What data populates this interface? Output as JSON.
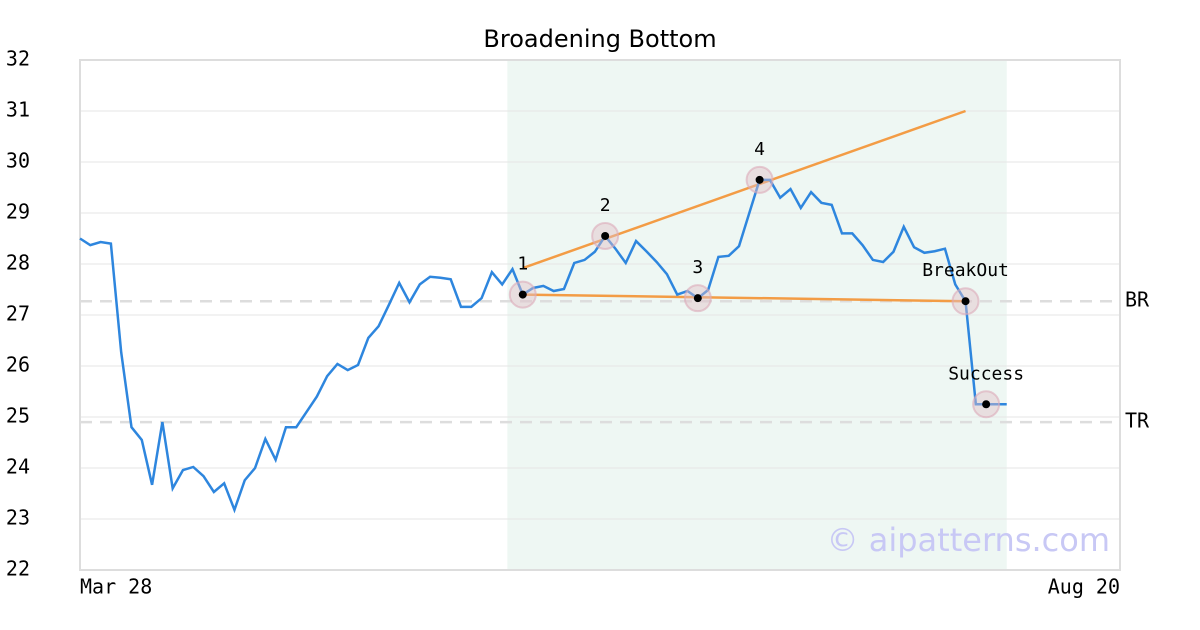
{
  "chart_data": {
    "type": "line",
    "title": "Broadening Bottom",
    "categories": [
      "Mar 28",
      null,
      null,
      null,
      null,
      null,
      null,
      null,
      null,
      null,
      null,
      null,
      null,
      null,
      null,
      null,
      null,
      null,
      null,
      null,
      null,
      null,
      null,
      null,
      null,
      null,
      null,
      null,
      null,
      null,
      null,
      null,
      null,
      null,
      null,
      null,
      null,
      null,
      null,
      null,
      null,
      null,
      null,
      null,
      null,
      null,
      null,
      null,
      null,
      null,
      null,
      null,
      null,
      null,
      null,
      null,
      null,
      null,
      null,
      null,
      null,
      null,
      null,
      null,
      null,
      null,
      null,
      null,
      null,
      null,
      null,
      null,
      null,
      null,
      null,
      null,
      null,
      null,
      null,
      null,
      null,
      null,
      null,
      null,
      null,
      null,
      null,
      null,
      null,
      null,
      null,
      null,
      null,
      null,
      null,
      null,
      null,
      null,
      null,
      null,
      null,
      "Aug 20"
    ],
    "values": [
      28.5,
      28.37,
      28.43,
      28.4,
      26.27,
      24.8,
      24.55,
      23.67,
      24.9,
      23.6,
      23.96,
      24.02,
      23.84,
      23.53,
      23.7,
      23.18,
      23.76,
      24.0,
      24.57,
      24.16,
      24.8,
      24.8,
      25.1,
      25.4,
      25.8,
      26.04,
      25.92,
      26.02,
      26.55,
      26.78,
      27.2,
      27.63,
      27.25,
      27.6,
      27.75,
      27.73,
      27.7,
      27.16,
      27.16,
      27.33,
      27.84,
      27.6,
      27.9,
      27.4,
      27.53,
      27.57,
      27.47,
      27.51,
      28.02,
      28.08,
      28.24,
      28.55,
      28.3,
      28.02,
      28.45,
      28.25,
      28.04,
      27.8,
      27.4,
      27.47,
      27.33,
      27.49,
      28.14,
      28.16,
      28.35,
      29.0,
      29.65,
      29.65,
      29.3,
      29.47,
      29.1,
      29.41,
      29.2,
      29.16,
      28.6,
      28.6,
      28.37,
      28.08,
      28.04,
      28.24,
      28.73,
      28.33,
      28.22,
      28.25,
      28.3,
      27.6,
      27.27,
      25.25,
      25.25,
      25.25,
      25.25,
      null,
      null,
      null,
      null,
      null,
      null,
      null,
      null,
      null,
      null,
      null
    ],
    "color": "#2e86de",
    "ylim": [
      22,
      32
    ],
    "yticks": [
      22,
      23,
      24,
      25,
      26,
      27,
      28,
      29,
      30,
      31,
      32
    ],
    "grid": true,
    "highlight": [
      41.5,
      90
    ],
    "highlight_color": "#eef7f3",
    "trendlines": [
      {
        "x": [
          43,
          86
        ],
        "y": [
          27.92,
          31.0
        ]
      },
      {
        "x": [
          43,
          86
        ],
        "y": [
          27.4,
          27.27
        ]
      }
    ],
    "trend_color": "#f39c45",
    "levels": [
      {
        "label": "BR",
        "value": 27.27
      },
      {
        "label": "TR",
        "value": 24.9
      }
    ],
    "annotations": [
      {
        "label": "1",
        "x": 43
      },
      {
        "label": "2",
        "x": 51
      },
      {
        "label": "3",
        "x": 60
      },
      {
        "label": "4",
        "x": 66
      },
      {
        "label": "BreakOut",
        "x": 86
      },
      {
        "label": "Success",
        "x": 88
      }
    ],
    "watermark": "© aipatterns.com"
  }
}
